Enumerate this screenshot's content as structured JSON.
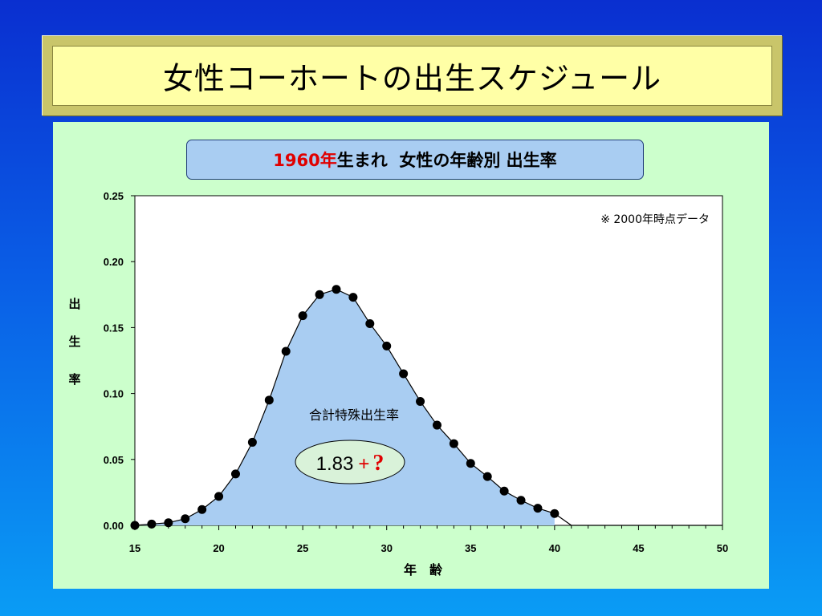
{
  "slide": {
    "title": "女性コーホートの出生スケジュール"
  },
  "chart_title": {
    "highlight": "1960年",
    "rest": "生まれ  女性の年齢別 出生率"
  },
  "chart_data": {
    "type": "area",
    "xlabel": "年　齢",
    "ylabel": "出生率",
    "xlim": [
      15,
      50
    ],
    "ylim": [
      0,
      0.25
    ],
    "xticks": [
      15,
      20,
      25,
      30,
      35,
      40,
      45,
      50
    ],
    "yticks": [
      "0.00",
      "0.05",
      "0.10",
      "0.15",
      "0.20",
      "0.25"
    ],
    "grid": false,
    "note": "※ 2000年時点データ",
    "annotation_label": "合計特殊出生率",
    "annotation_value": "1.83",
    "annotation_plus": "+",
    "annotation_q": "?",
    "series": [
      {
        "x": [
          15,
          16,
          17,
          18,
          19,
          20,
          21,
          22,
          23,
          24,
          25,
          26,
          27,
          28,
          29,
          30,
          31,
          32,
          33,
          34,
          35,
          36,
          37,
          38,
          39,
          40
        ],
        "values": [
          0.0,
          0.001,
          0.002,
          0.005,
          0.012,
          0.022,
          0.039,
          0.063,
          0.095,
          0.132,
          0.159,
          0.175,
          0.179,
          0.173,
          0.153,
          0.136,
          0.115,
          0.094,
          0.076,
          0.062,
          0.047,
          0.037,
          0.026,
          0.019,
          0.013,
          0.009
        ]
      }
    ],
    "tail_x": [
      40,
      41,
      42,
      50
    ],
    "tail_values": [
      0.009,
      0.0,
      0.0,
      0.0
    ],
    "colors": {
      "fill": "#a9cdf2",
      "line": "#000000",
      "marker": "#000000",
      "ellipse": "#d9f2d9"
    }
  }
}
